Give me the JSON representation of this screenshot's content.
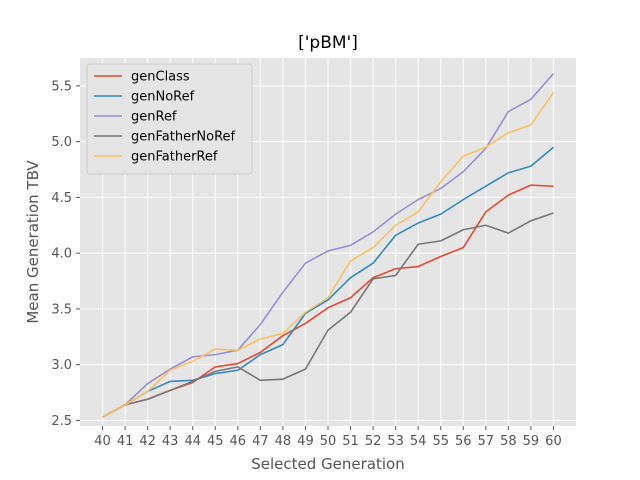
{
  "chart_data": {
    "type": "line",
    "title": "['pBM']",
    "xlabel": "Selected Generation",
    "ylabel": "Mean Generation TBV",
    "x": [
      40,
      41,
      42,
      43,
      44,
      45,
      46,
      47,
      48,
      49,
      50,
      51,
      52,
      53,
      54,
      55,
      56,
      57,
      58,
      59,
      60
    ],
    "xlim": [
      39.0,
      61.0
    ],
    "ylim": [
      2.45,
      5.75
    ],
    "yticks": [
      2.5,
      3.0,
      3.5,
      4.0,
      4.5,
      5.0,
      5.5
    ],
    "ytick_labels": [
      "2.5",
      "3.0",
      "3.5",
      "4.0",
      "4.5",
      "5.0",
      "5.5"
    ],
    "grid": true,
    "legend_position": "top-left",
    "series": [
      {
        "name": "genClass",
        "color": "#e24a33",
        "values": [
          2.53,
          2.64,
          2.69,
          2.77,
          2.84,
          2.98,
          3.01,
          3.11,
          3.26,
          3.37,
          3.51,
          3.6,
          3.78,
          3.86,
          3.88,
          3.97,
          4.05,
          4.37,
          4.52,
          4.61,
          4.6
        ]
      },
      {
        "name": "genNoRef",
        "color": "#348abd",
        "values": [
          2.53,
          2.64,
          2.76,
          2.85,
          2.86,
          2.92,
          2.95,
          3.09,
          3.18,
          3.46,
          3.58,
          3.78,
          3.91,
          4.16,
          4.27,
          4.35,
          4.48,
          4.6,
          4.72,
          4.78,
          4.95
        ]
      },
      {
        "name": "genRef",
        "color": "#988ed5",
        "values": [
          2.53,
          2.64,
          2.83,
          2.96,
          3.07,
          3.09,
          3.13,
          3.36,
          3.65,
          3.91,
          4.02,
          4.07,
          4.19,
          4.35,
          4.48,
          4.58,
          4.73,
          4.94,
          5.27,
          5.38,
          5.61
        ]
      },
      {
        "name": "genFatherNoRef",
        "color": "#777777",
        "values": [
          2.53,
          2.64,
          2.69,
          2.77,
          2.85,
          2.94,
          2.98,
          2.86,
          2.87,
          2.96,
          3.31,
          3.47,
          3.77,
          3.8,
          4.08,
          4.11,
          4.21,
          4.25,
          4.18,
          4.29,
          4.36
        ]
      },
      {
        "name": "genFatherRef",
        "color": "#fbc15e",
        "values": [
          2.53,
          2.64,
          2.76,
          2.95,
          3.03,
          3.14,
          3.13,
          3.23,
          3.28,
          3.47,
          3.6,
          3.93,
          4.05,
          4.25,
          4.37,
          4.64,
          4.87,
          4.95,
          5.08,
          5.15,
          5.44
        ]
      }
    ]
  }
}
